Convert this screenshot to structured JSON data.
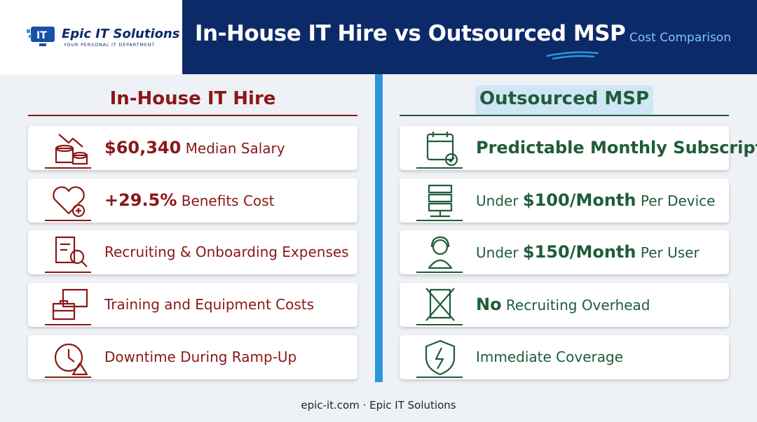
{
  "header": {
    "logo_name": "Epic IT Solutions",
    "logo_tagline": "YOUR PERSONAL IT DEPARTMENT",
    "title": "In-House IT Hire vs Outsourced MSP",
    "subtitle": "Cost Comparison"
  },
  "left": {
    "heading": "In-House IT Hire",
    "items": [
      [
        {
          "text": "$60,340",
          "strong": true
        },
        {
          "text": " Median Salary"
        }
      ],
      [
        {
          "text": "+29.5%",
          "strong": true
        },
        {
          "text": " Benefits Cost"
        }
      ],
      [
        {
          "text": "Recruiting & Onboarding Expenses"
        }
      ],
      [
        {
          "text": "Training and Equipment Costs"
        }
      ],
      [
        {
          "text": "Downtime During Ramp-Up"
        }
      ]
    ]
  },
  "right": {
    "heading": "Outsourced MSP",
    "items": [
      [
        {
          "text": "Predictable Monthly Subscription",
          "strong": true
        }
      ],
      [
        {
          "text": "Under "
        },
        {
          "text": "$100/Month",
          "strong": true
        },
        {
          "text": " Per Device"
        }
      ],
      [
        {
          "text": "Under "
        },
        {
          "text": "$150/Month",
          "strong": true
        },
        {
          "text": " Per User"
        }
      ],
      [
        {
          "text": "No",
          "strong": true
        },
        {
          "text": " Recruiting Overhead"
        }
      ],
      [
        {
          "text": "Immediate Coverage"
        }
      ]
    ]
  },
  "footer": "epic-it.com · Epic IT Solutions"
}
